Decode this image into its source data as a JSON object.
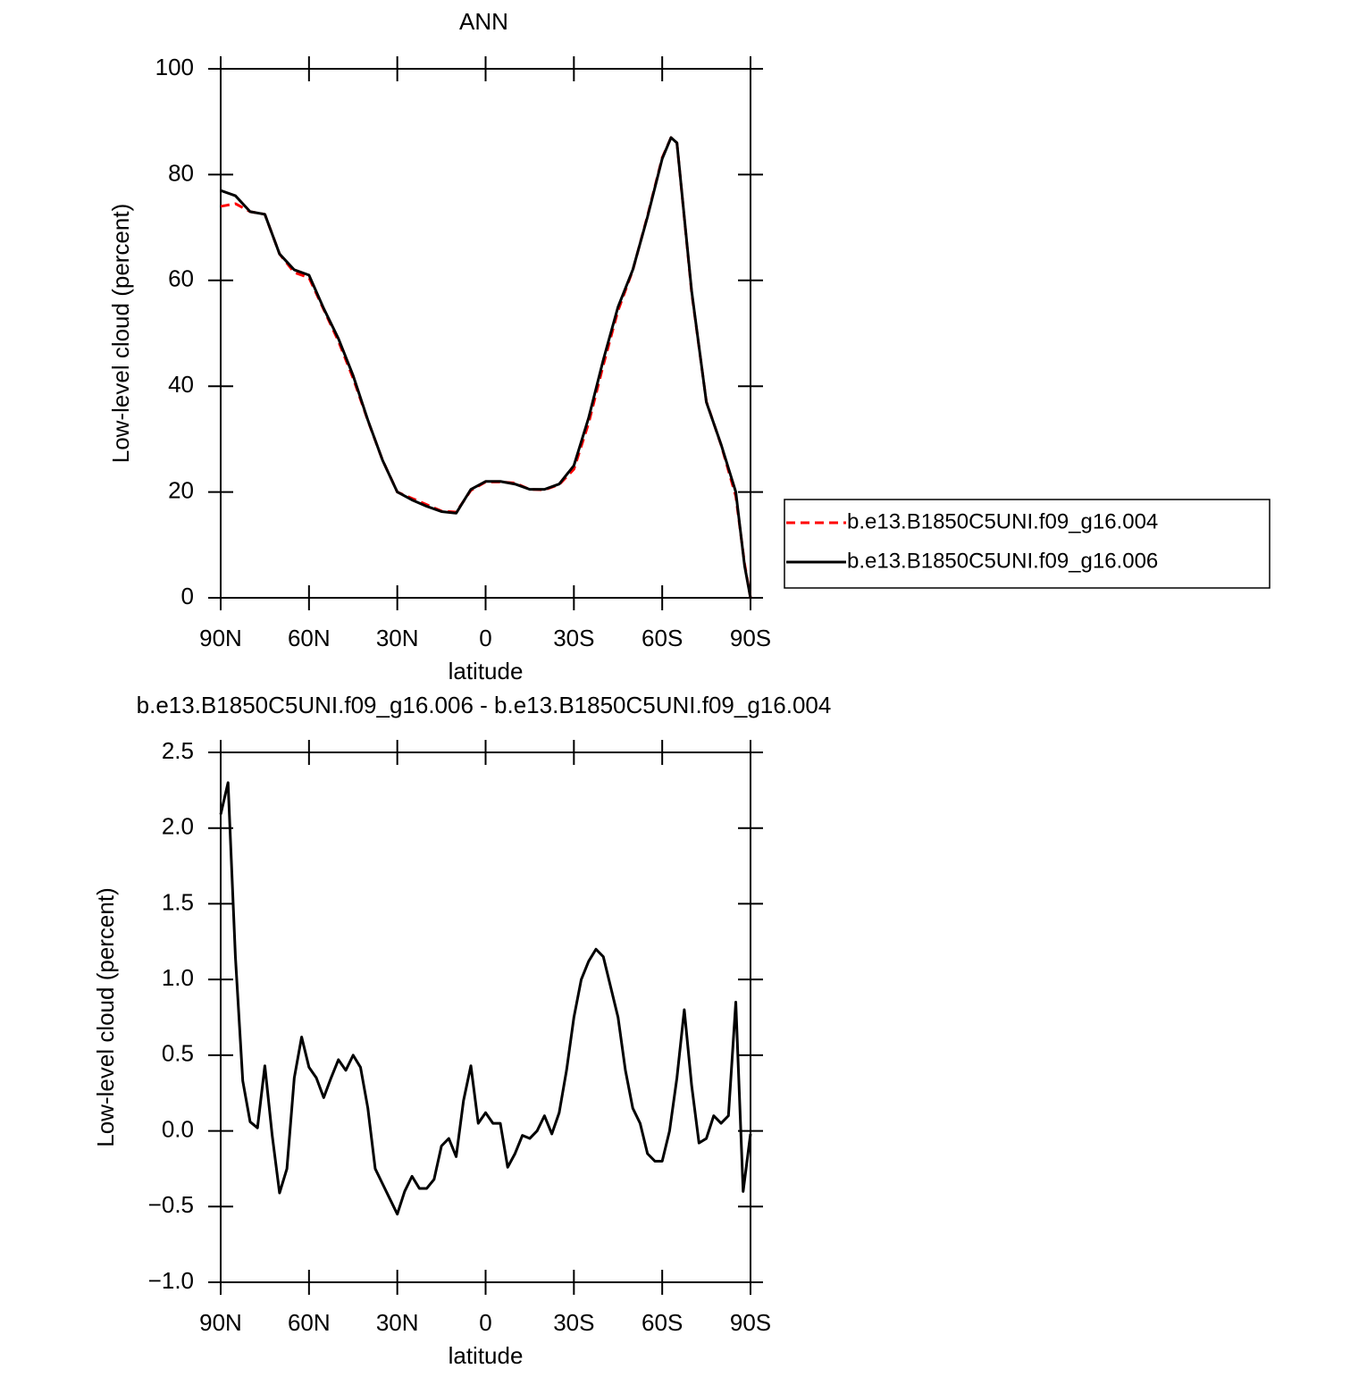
{
  "chart_data": [
    {
      "type": "line",
      "title": "ANN",
      "xlabel": "latitude",
      "ylabel": "Low-level cloud (percent)",
      "x": [
        90,
        85,
        80,
        75,
        70,
        65,
        60,
        55,
        50,
        45,
        40,
        35,
        30,
        25,
        20,
        15,
        10,
        5,
        0,
        -5,
        -10,
        -15,
        -20,
        -25,
        -30,
        -35,
        -40,
        -45,
        -50,
        -55,
        -60,
        -63,
        -65,
        -70,
        -75,
        -80,
        -85,
        -88,
        -90
      ],
      "series": [
        {
          "name": "b.e13.B1850C5UNI.f09_g16.004",
          "color": "#ff0000",
          "linestyle": "dashed",
          "values": [
            74,
            74.5,
            73,
            72.5,
            65,
            61.5,
            60.5,
            54.5,
            48.5,
            41.5,
            33.5,
            26,
            20,
            18.8,
            17.6,
            16.4,
            16.2,
            20.3,
            21.9,
            21.9,
            21.7,
            20.5,
            20.4,
            21.4,
            24.3,
            33,
            44,
            54.3,
            61.9,
            72.2,
            83.2,
            87,
            86,
            57.7,
            37.1,
            28.9,
            19.2,
            6.4,
            0
          ]
        },
        {
          "name": "b.e13.B1850C5UNI.f09_g16.006",
          "color": "#000000",
          "linestyle": "solid",
          "values": [
            77,
            76,
            73,
            72.5,
            65,
            62,
            61,
            54.7,
            49,
            42,
            33.6,
            26,
            20,
            18.5,
            17.3,
            16.3,
            16,
            20.5,
            22,
            22,
            21.5,
            20.5,
            20.5,
            21.5,
            25,
            34,
            45,
            55,
            62,
            72,
            83,
            87,
            86,
            58,
            37,
            29,
            20,
            6,
            0
          ]
        }
      ],
      "xlim": [
        90,
        -90
      ],
      "xticks": [
        {
          "value": 90,
          "label": "90N"
        },
        {
          "value": 60,
          "label": "60N"
        },
        {
          "value": 30,
          "label": "30N"
        },
        0,
        {
          "value": -30,
          "label": "30S"
        },
        {
          "value": -60,
          "label": "60S"
        },
        {
          "value": -90,
          "label": "90S"
        }
      ],
      "ylim": [
        0,
        100
      ],
      "yticks": [
        0,
        20,
        40,
        60,
        80,
        100
      ],
      "legend": "right"
    },
    {
      "type": "line",
      "title": "b.e13.B1850C5UNI.f09_g16.006 - b.e13.B1850C5UNI.f09_g16.004",
      "xlabel": "latitude",
      "ylabel": "Low-level cloud (percent)",
      "x": [
        90,
        87.5,
        85,
        82.5,
        80,
        77.5,
        75,
        72.5,
        70,
        67.5,
        65,
        62.5,
        60,
        57.5,
        55,
        52.5,
        50,
        47.5,
        45,
        42.5,
        40,
        37.5,
        35,
        32.5,
        30,
        27.5,
        25,
        22.5,
        20,
        17.5,
        15,
        12.5,
        10,
        7.5,
        5,
        2.5,
        0,
        -2.5,
        -5,
        -7.5,
        -10,
        -12.5,
        -15,
        -17.5,
        -20,
        -22.5,
        -25,
        -27.5,
        -30,
        -32.5,
        -35,
        -37.5,
        -40,
        -42.5,
        -45,
        -47.5,
        -50,
        -52.5,
        -55,
        -57.5,
        -60,
        -62.5,
        -65,
        -67.5,
        -70,
        -72.5,
        -75,
        -77.5,
        -80,
        -82.5,
        -85,
        -87.5,
        -90
      ],
      "series": [
        {
          "color": "#000000",
          "linestyle": "solid",
          "values": [
            2.09,
            2.3,
            1.15,
            0.33,
            0.06,
            0.02,
            0.43,
            -0.03,
            -0.41,
            -0.25,
            0.35,
            0.62,
            0.42,
            0.35,
            0.22,
            0.35,
            0.47,
            0.4,
            0.5,
            0.42,
            0.15,
            -0.25,
            -0.35,
            -0.45,
            -0.55,
            -0.4,
            -0.3,
            -0.38,
            -0.38,
            -0.32,
            -0.1,
            -0.05,
            -0.17,
            0.2,
            0.43,
            0.05,
            0.12,
            0.05,
            0.05,
            -0.24,
            -0.15,
            -0.03,
            -0.05,
            0.0,
            0.1,
            -0.02,
            0.12,
            0.4,
            0.75,
            1.0,
            1.12,
            1.2,
            1.15,
            0.95,
            0.75,
            0.4,
            0.15,
            0.05,
            -0.15,
            -0.2,
            -0.2,
            0.0,
            0.35,
            0.8,
            0.3,
            -0.08,
            -0.05,
            0.1,
            0.05,
            0.1,
            0.85,
            -0.4,
            -0.02
          ]
        }
      ],
      "xlim": [
        90,
        -90
      ],
      "xticks": [
        {
          "value": 90,
          "label": "90N"
        },
        {
          "value": 60,
          "label": "60N"
        },
        {
          "value": 30,
          "label": "30N"
        },
        0,
        {
          "value": -30,
          "label": "30S"
        },
        {
          "value": -60,
          "label": "60S"
        },
        {
          "value": -90,
          "label": "90S"
        }
      ],
      "ylim": [
        -1,
        2.5
      ],
      "yticks": [
        {
          "value": -1,
          "label": "−1.0"
        },
        {
          "value": -0.5,
          "label": "−0.5"
        },
        {
          "value": 0,
          "label": "0.0"
        },
        0.5,
        {
          "value": 1,
          "label": "1.0"
        },
        1.5,
        {
          "value": 2,
          "label": "2.0"
        },
        2.5
      ]
    }
  ]
}
